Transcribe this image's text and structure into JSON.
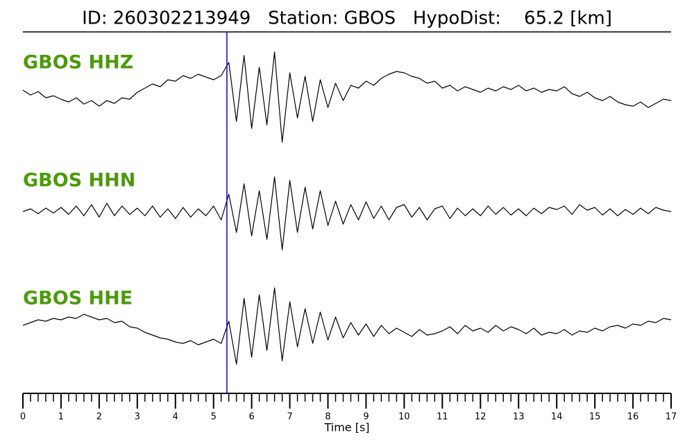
{
  "chart_data": {
    "type": "seismogram",
    "title": "ID: 260302213949   Station: GBOS   HypoDist:    65.2 [km]",
    "xlabel": "Time [s]",
    "xlim": [
      0,
      17
    ],
    "xticks": [
      0,
      1,
      2,
      3,
      4,
      5,
      6,
      7,
      8,
      9,
      10,
      11,
      12,
      13,
      14,
      15,
      16,
      17
    ],
    "xminorticks": [
      0.2,
      0.4,
      0.6,
      0.8,
      1.2,
      1.4,
      1.6,
      1.8,
      2.2,
      2.4,
      2.6,
      2.8,
      3.2,
      3.4,
      3.6,
      3.8,
      4.2,
      4.4,
      4.6,
      4.8,
      5.2,
      5.4,
      5.6,
      5.8,
      6.2,
      6.4,
      6.6,
      6.8,
      7.2,
      7.4,
      7.6,
      7.8,
      8.2,
      8.4,
      8.6,
      8.8,
      9.2,
      9.4,
      9.6,
      9.8,
      10.2,
      10.4,
      10.6,
      10.8,
      11.2,
      11.4,
      11.6,
      11.8,
      12.2,
      12.4,
      12.6,
      12.8,
      13.2,
      13.4,
      13.6,
      13.8,
      14.2,
      14.4,
      14.6,
      14.8,
      15.2,
      15.4,
      15.6,
      15.8,
      16.2,
      16.4,
      16.6,
      16.8
    ],
    "ylim": [
      -85,
      85
    ],
    "pick_time": 5.35,
    "pick_color": "#0000cc",
    "label_color": "#4b9a0b",
    "trace_color": "#000000",
    "x": [
      0,
      0.2,
      0.4,
      0.6,
      0.8,
      1,
      1.2,
      1.4,
      1.6,
      1.8,
      2,
      2.2,
      2.4,
      2.6,
      2.8,
      3,
      3.2,
      3.4,
      3.6,
      3.8,
      4,
      4.2,
      4.4,
      4.6,
      4.8,
      5,
      5.2,
      5.4,
      5.6,
      5.8,
      6,
      6.2,
      6.4,
      6.6,
      6.8,
      7,
      7.2,
      7.4,
      7.6,
      7.8,
      8,
      8.2,
      8.4,
      8.6,
      8.8,
      9,
      9.2,
      9.4,
      9.6,
      9.8,
      10,
      10.2,
      10.4,
      10.6,
      10.8,
      11,
      11.2,
      11.4,
      11.6,
      11.8,
      12,
      12.2,
      12.4,
      12.6,
      12.8,
      13,
      13.2,
      13.4,
      13.6,
      13.8,
      14,
      14.2,
      14.4,
      14.6,
      14.8,
      15,
      15.2,
      15.4,
      15.6,
      15.8,
      16,
      16.2,
      16.4,
      16.6,
      16.8,
      17
    ],
    "series": [
      {
        "name": "GBOS HHZ",
        "values": [
          5,
          -2,
          3,
          -6,
          -3,
          -8,
          -12,
          -6,
          -15,
          -10,
          -18,
          -10,
          -14,
          -6,
          -8,
          2,
          8,
          14,
          10,
          20,
          18,
          26,
          22,
          28,
          24,
          20,
          26,
          45,
          -40,
          55,
          -50,
          38,
          -45,
          60,
          -70,
          30,
          -35,
          25,
          -40,
          20,
          -20,
          15,
          -10,
          12,
          8,
          18,
          12,
          22,
          28,
          32,
          30,
          25,
          22,
          15,
          18,
          8,
          12,
          4,
          10,
          6,
          2,
          8,
          4,
          10,
          6,
          12,
          4,
          8,
          2,
          6,
          4,
          10,
          0,
          -4,
          2,
          -6,
          -10,
          -4,
          -12,
          -16,
          -18,
          -12,
          -20,
          -14,
          -8,
          -10
        ]
      },
      {
        "name": "GBOS HHN",
        "values": [
          0,
          4,
          -3,
          5,
          -2,
          6,
          -4,
          8,
          -6,
          10,
          -8,
          12,
          -6,
          8,
          -4,
          5,
          -6,
          8,
          -8,
          4,
          -10,
          6,
          -8,
          4,
          -6,
          8,
          -12,
          25,
          -30,
          40,
          -35,
          30,
          -40,
          50,
          -55,
          45,
          -30,
          35,
          -25,
          30,
          -20,
          15,
          -18,
          10,
          -12,
          14,
          -10,
          8,
          -12,
          6,
          10,
          -8,
          6,
          -12,
          4,
          8,
          -10,
          5,
          -6,
          4,
          -6,
          8,
          -4,
          6,
          -5,
          4,
          -6,
          5,
          -3,
          6,
          3,
          8,
          -4,
          10,
          2,
          6,
          -5,
          4,
          -6,
          3,
          -4,
          5,
          -3,
          6,
          2,
          0
        ]
      },
      {
        "name": "GBOS HHE",
        "values": [
          6,
          10,
          14,
          12,
          16,
          14,
          18,
          16,
          22,
          18,
          14,
          16,
          10,
          12,
          4,
          2,
          -4,
          -8,
          -12,
          -14,
          -18,
          -20,
          -16,
          -22,
          -18,
          -14,
          -20,
          12,
          -50,
          45,
          -40,
          50,
          -30,
          60,
          -45,
          40,
          -25,
          30,
          -20,
          25,
          -15,
          18,
          -12,
          10,
          -8,
          8,
          -10,
          6,
          -6,
          2,
          -4,
          -10,
          0,
          -8,
          -6,
          -2,
          4,
          -6,
          6,
          -2,
          2,
          -4,
          6,
          -2,
          4,
          0,
          -6,
          2,
          -8,
          -4,
          -6,
          0,
          -8,
          -2,
          -4,
          2,
          -2,
          4,
          6,
          2,
          8,
          6,
          12,
          10,
          16,
          14
        ]
      }
    ]
  }
}
